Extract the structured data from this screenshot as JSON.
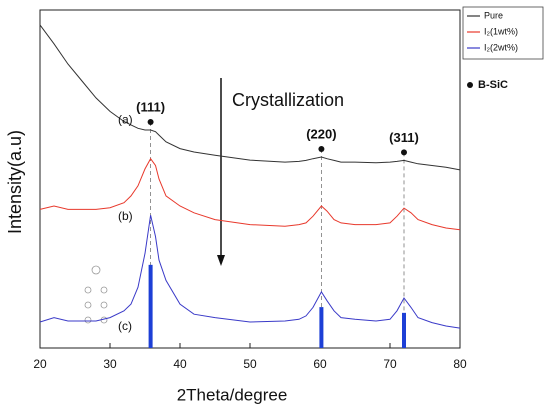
{
  "chart_data": {
    "type": "line",
    "xlabel": "2Theta/degree",
    "ylabel": "Intensity(a.u)",
    "xlim": [
      20,
      80
    ],
    "xticks": [
      20,
      30,
      40,
      50,
      60,
      70,
      80
    ],
    "ylim": [
      0,
      100
    ],
    "x": [
      20,
      22,
      24,
      26,
      28,
      30,
      32,
      33,
      34,
      35,
      35.8,
      36.5,
      37,
      38,
      40,
      42,
      45,
      50,
      55,
      57,
      58,
      59,
      60.2,
      61,
      62,
      63,
      65,
      68,
      70,
      71,
      72,
      73,
      74,
      76,
      78,
      80
    ],
    "series": [
      {
        "name": "Pure",
        "color": "#333333",
        "label": "(a)",
        "values": [
          95.6,
          90,
          84,
          79,
          74,
          70,
          67,
          66,
          65,
          64.5,
          64.5,
          64,
          63,
          61,
          59,
          58,
          57,
          55.6,
          55,
          55.2,
          55.5,
          56,
          56.5,
          56,
          55.5,
          55,
          55,
          54.8,
          55,
          55.2,
          55.5,
          55,
          54.5,
          54,
          53.5,
          52.7
        ]
      },
      {
        "name": "I₂(1wt%)",
        "color": "#e8392c",
        "label": "(b)",
        "values": [
          41,
          42,
          41,
          41,
          41,
          41.5,
          43,
          45,
          48,
          53,
          56,
          54,
          50,
          45,
          42,
          40,
          38,
          36.5,
          36,
          36.5,
          37,
          39,
          42,
          40.5,
          38,
          37,
          36.5,
          36.5,
          37,
          39,
          41.4,
          40,
          38,
          36.5,
          35.5,
          35
        ]
      },
      {
        "name": "I₂(2wt%)",
        "color": "#3a3ac8",
        "label": "(c)",
        "values": [
          7.7,
          9,
          8,
          8,
          8,
          9,
          11,
          13,
          18,
          28,
          39.3,
          33,
          26,
          20,
          13,
          10,
          9,
          7.7,
          8,
          8.5,
          9.5,
          12,
          16.6,
          14,
          11,
          9,
          8.5,
          8,
          8.5,
          11,
          14.8,
          12,
          9,
          7.5,
          6.5,
          5.9
        ]
      }
    ],
    "reference": {
      "name": "B-SiC",
      "color": "#1d3fd6",
      "x": [
        35.8,
        60.2,
        72
      ],
      "values": [
        24.6,
        12.1,
        10.4
      ]
    },
    "peaks": [
      {
        "label": "(111)",
        "x": 35.8
      },
      {
        "label": "(220)",
        "x": 60.2
      },
      {
        "label": "(311)",
        "x": 72
      }
    ],
    "arrow_label": "Crystallization"
  }
}
